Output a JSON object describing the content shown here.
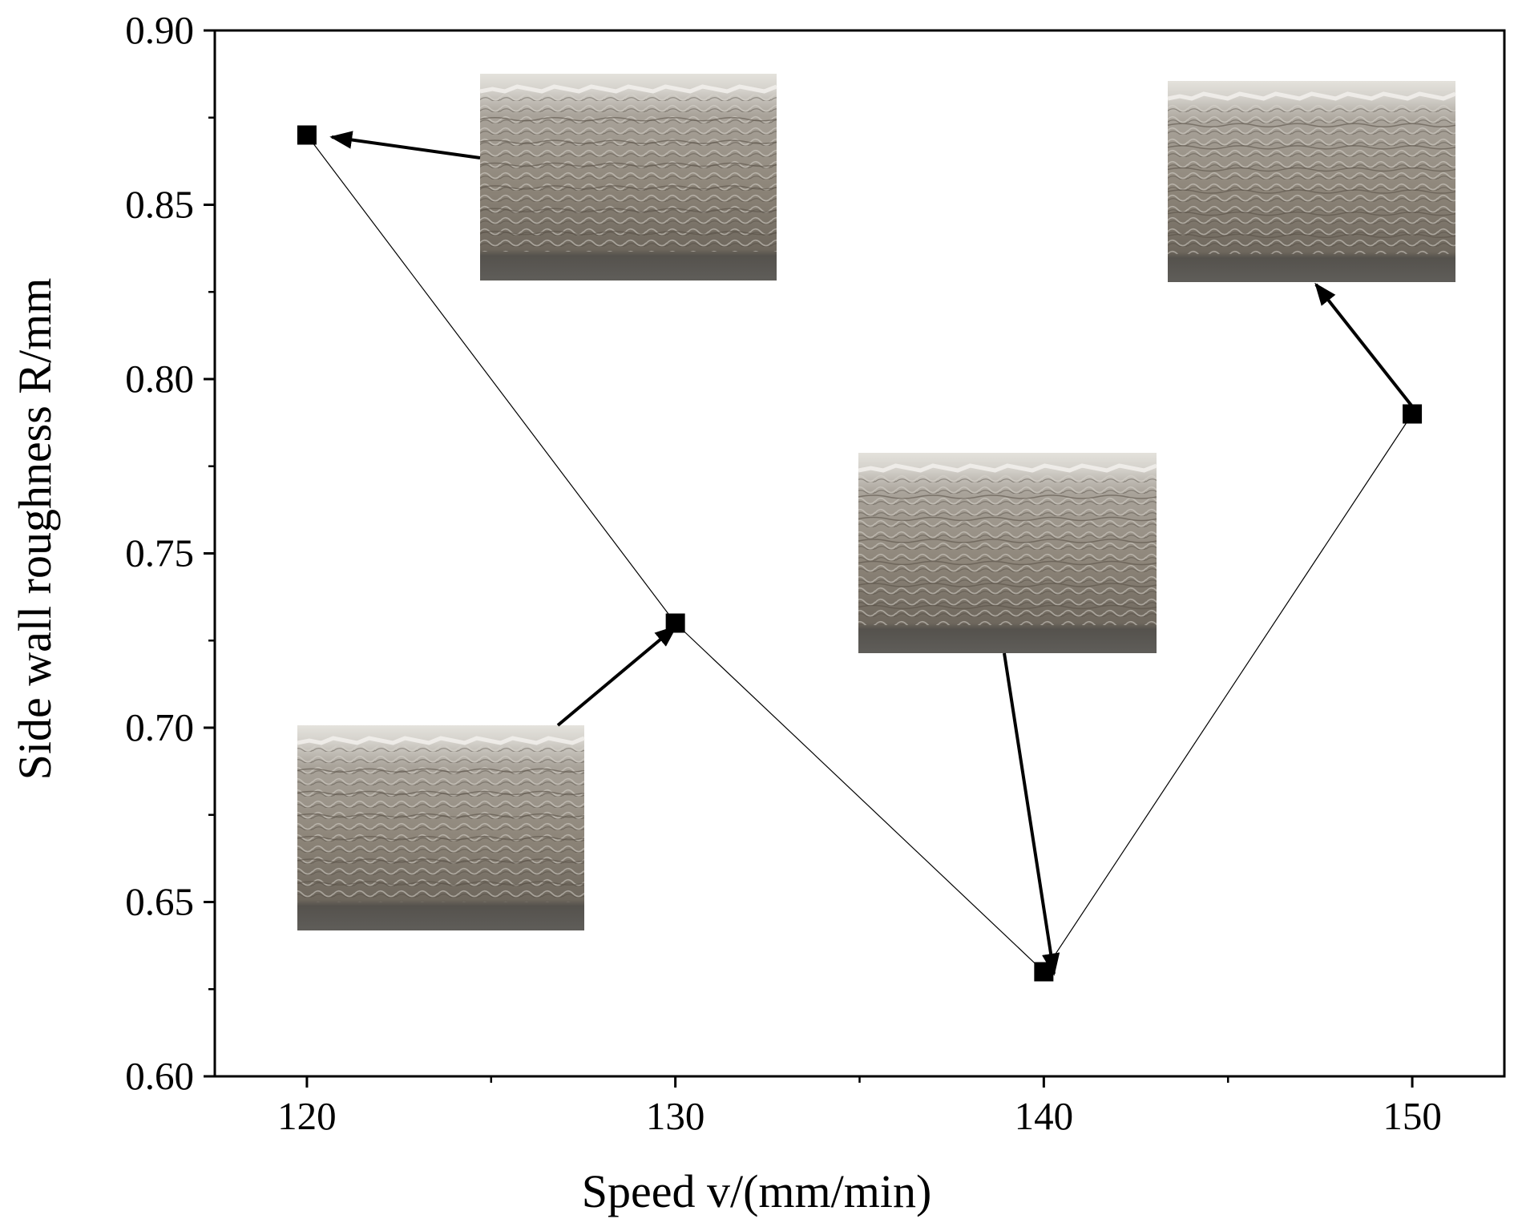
{
  "chart_data": {
    "type": "line",
    "title": "",
    "xlabel": "Speed v/(mm/min)",
    "ylabel": "Side wall roughness R/mm",
    "x": [
      120,
      130,
      140,
      150
    ],
    "series": [
      {
        "name": "Side wall roughness",
        "values": [
          0.87,
          0.73,
          0.63,
          0.79
        ],
        "marker": "square"
      }
    ],
    "xlim": [
      117.5,
      152.5
    ],
    "ylim": [
      0.6,
      0.9
    ],
    "xticks": [
      120,
      130,
      140,
      150
    ],
    "xtick_labels": [
      "120",
      "130",
      "140",
      "150"
    ],
    "yticks": [
      0.6,
      0.65,
      0.7,
      0.75,
      0.8,
      0.85,
      0.9
    ],
    "ytick_labels": [
      "0.60",
      "0.65",
      "0.70",
      "0.75",
      "0.80",
      "0.85",
      "0.90"
    ],
    "x_minor_step": 5,
    "y_minor_step": 0.025,
    "grid": false,
    "insets": [
      {
        "name": "photo-inset-120",
        "description": "deposited wall side view",
        "points_to": {
          "x": 120,
          "y": 0.87
        }
      },
      {
        "name": "photo-inset-130",
        "description": "deposited wall side view",
        "points_to": {
          "x": 130,
          "y": 0.73
        }
      },
      {
        "name": "photo-inset-140",
        "description": "deposited wall side view",
        "points_to": {
          "x": 140,
          "y": 0.63
        }
      },
      {
        "name": "photo-inset-150",
        "description": "deposited wall side view",
        "points_to": {
          "x": 150,
          "y": 0.79
        }
      }
    ],
    "colors": {
      "line": "#000000",
      "marker": "#000000",
      "axis": "#000000",
      "background": "#ffffff"
    }
  }
}
